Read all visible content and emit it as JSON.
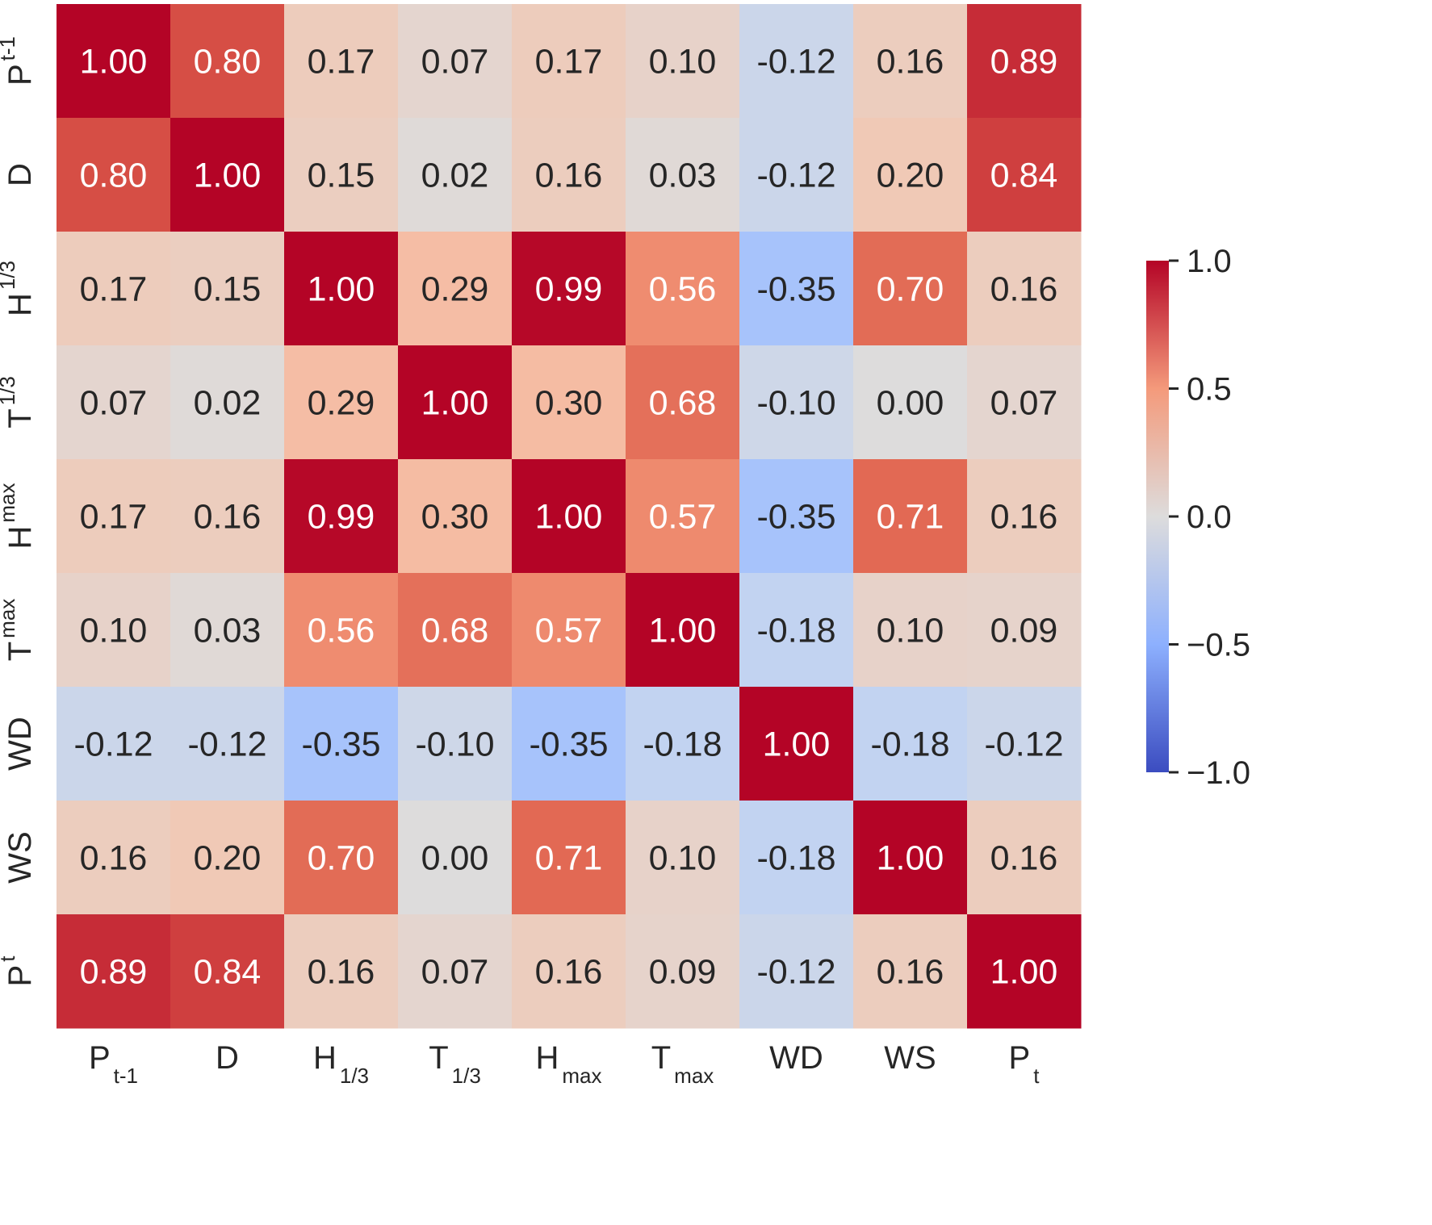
{
  "chart_data": {
    "type": "heatmap",
    "title": "",
    "xlabel": "",
    "ylabel": "",
    "labels": [
      {
        "base": "P",
        "sub": "t-1"
      },
      {
        "base": "D",
        "sub": ""
      },
      {
        "base": "H",
        "sub": "1/3"
      },
      {
        "base": "T",
        "sub": "1/3"
      },
      {
        "base": "H",
        "sub": "max"
      },
      {
        "base": "T",
        "sub": "max"
      },
      {
        "base": "WD",
        "sub": ""
      },
      {
        "base": "WS",
        "sub": ""
      },
      {
        "base": "P",
        "sub": "t"
      }
    ],
    "matrix": [
      [
        1.0,
        0.8,
        0.17,
        0.07,
        0.17,
        0.1,
        -0.12,
        0.16,
        0.89
      ],
      [
        0.8,
        1.0,
        0.15,
        0.02,
        0.16,
        0.03,
        -0.12,
        0.2,
        0.84
      ],
      [
        0.17,
        0.15,
        1.0,
        0.29,
        0.99,
        0.56,
        -0.35,
        0.7,
        0.16
      ],
      [
        0.07,
        0.02,
        0.29,
        1.0,
        0.3,
        0.68,
        -0.1,
        0.0,
        0.07
      ],
      [
        0.17,
        0.16,
        0.99,
        0.3,
        1.0,
        0.57,
        -0.35,
        0.71,
        0.16
      ],
      [
        0.1,
        0.03,
        0.56,
        0.68,
        0.57,
        1.0,
        -0.18,
        0.1,
        0.09
      ],
      [
        -0.12,
        -0.12,
        -0.35,
        -0.1,
        -0.35,
        -0.18,
        1.0,
        -0.18,
        -0.12
      ],
      [
        0.16,
        0.2,
        0.7,
        0.0,
        0.71,
        0.1,
        -0.18,
        1.0,
        0.16
      ],
      [
        0.89,
        0.84,
        0.16,
        0.07,
        0.16,
        0.09,
        -0.12,
        0.16,
        1.0
      ]
    ],
    "value_format": "2 decimals",
    "colormap": "coolwarm",
    "colors": {
      "low": "#3b4cc0",
      "mid": "#dddddd",
      "high": "#b40426"
    },
    "vmin": -1.0,
    "vmax": 1.0,
    "colorbar": {
      "ticks": [
        1.0,
        0.5,
        0.0,
        -0.5,
        -1.0
      ],
      "tick_labels": [
        "1.0",
        "0.5",
        "0.0",
        "−0.5",
        "−1.0"
      ]
    },
    "legend": "colorbar-right",
    "grid": false
  }
}
